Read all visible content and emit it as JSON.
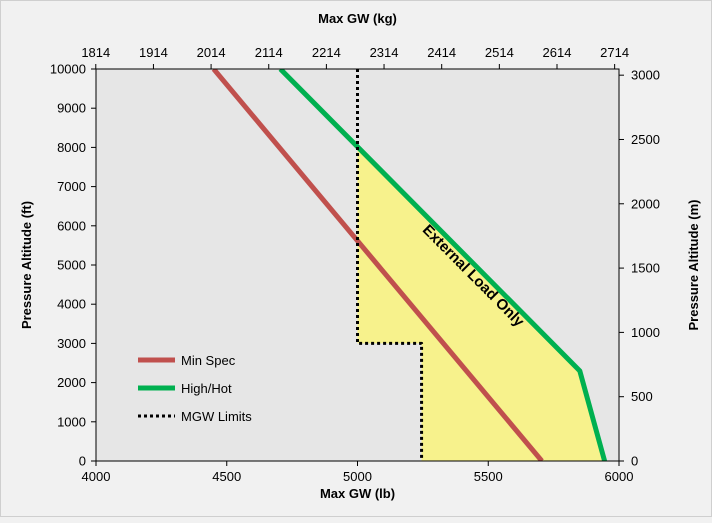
{
  "chart_data": {
    "type": "line",
    "x_bottom": {
      "title": "Max GW (lb)",
      "range": [
        4000,
        6000
      ],
      "ticks": [
        4000,
        4500,
        5000,
        5500,
        6000
      ],
      "tick_labels": [
        "4000",
        "4500",
        "5000",
        "5500",
        "6000"
      ]
    },
    "x_top": {
      "title": "Max GW (kg)",
      "tick_labels": [
        "1814",
        "1914",
        "2014",
        "2114",
        "2214",
        "2314",
        "2414",
        "2514",
        "2614",
        "2714"
      ],
      "ticks_kg": [
        1814,
        1914,
        2014,
        2114,
        2214,
        2314,
        2414,
        2514,
        2614,
        2714
      ]
    },
    "y_left": {
      "title": "Pressure Altitude (ft)",
      "range": [
        0,
        10000
      ],
      "ticks": [
        0,
        1000,
        2000,
        3000,
        4000,
        5000,
        6000,
        7000,
        8000,
        9000,
        10000
      ],
      "tick_labels": [
        "0",
        "1000",
        "2000",
        "3000",
        "4000",
        "5000",
        "6000",
        "7000",
        "8000",
        "9000",
        "10000"
      ]
    },
    "y_right": {
      "title": "Pressure Altitude (m)",
      "ticks_m": [
        0,
        500,
        1000,
        1500,
        2000,
        2500,
        3000
      ],
      "tick_labels": [
        "0",
        "500",
        "1000",
        "1500",
        "2000",
        "2500",
        "3000"
      ]
    },
    "series": [
      {
        "name": "Min Spec",
        "color": "#c0504d",
        "style": "solid",
        "points": [
          [
            4450,
            10000
          ],
          [
            5705,
            0
          ]
        ]
      },
      {
        "name": "High/Hot",
        "color": "#00b050",
        "style": "solid",
        "points": [
          [
            4705,
            10000
          ],
          [
            5850,
            2300
          ],
          [
            5945,
            0
          ]
        ]
      },
      {
        "name": "MGW Limits",
        "color": "#000000",
        "style": "dotted",
        "points": [
          [
            5000,
            10000
          ],
          [
            5000,
            3000
          ],
          [
            5245,
            3000
          ],
          [
            5245,
            0
          ]
        ]
      }
    ],
    "shaded_region": {
      "label": "External Load Only",
      "color": "#f7f28c",
      "boundary": [
        [
          5000,
          8000
        ],
        [
          5850,
          2300
        ],
        [
          5945,
          0
        ],
        [
          5245,
          0
        ],
        [
          5245,
          3000
        ],
        [
          5000,
          3000
        ]
      ]
    },
    "legend": {
      "position": "bottom-left",
      "entries": [
        "Min Spec",
        "High/Hot",
        "MGW Limits"
      ]
    },
    "plot_background": "#e6e6e6",
    "page_background": "#f1f1f1",
    "grid": false
  }
}
